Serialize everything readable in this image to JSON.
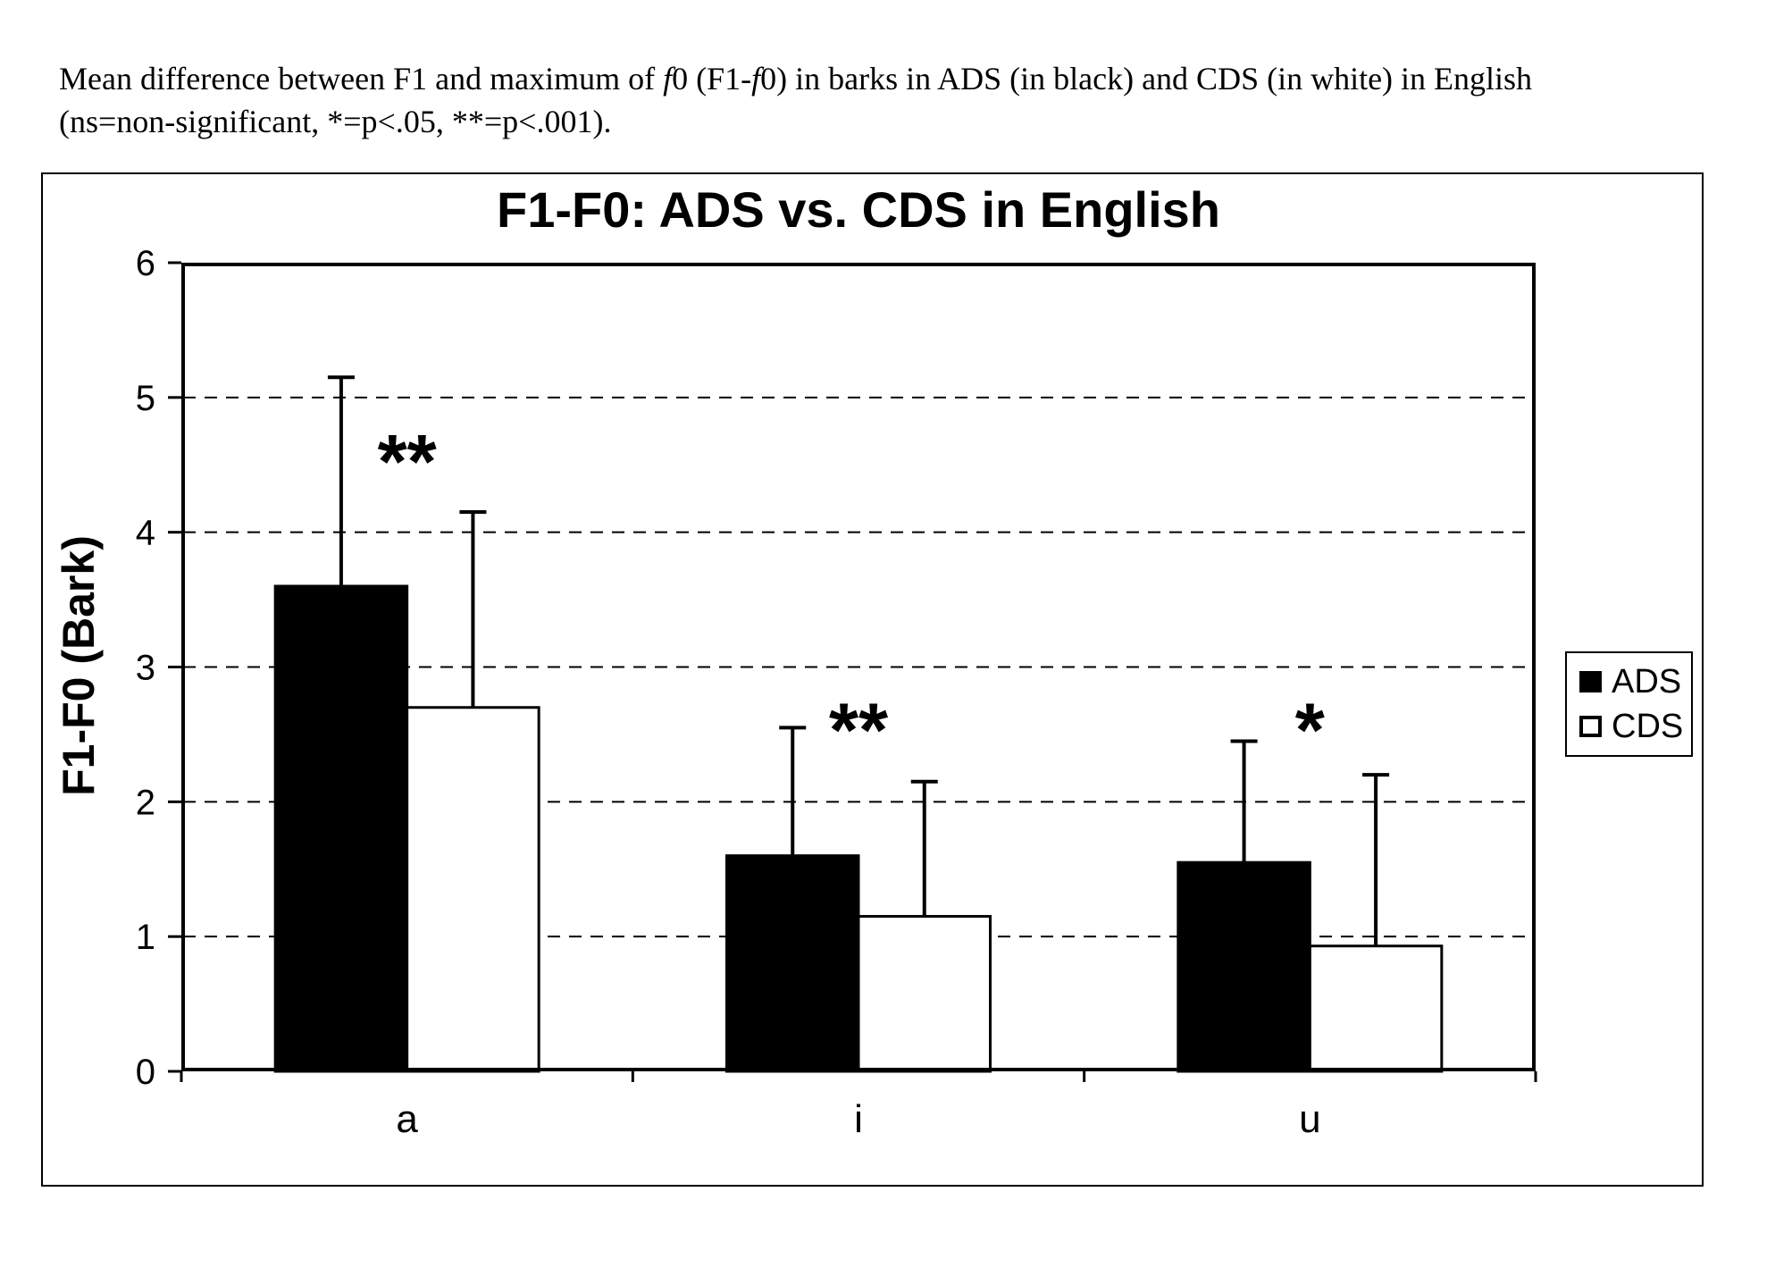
{
  "caption": {
    "line1": [
      {
        "text": "Mean difference between F1 and maximum of ",
        "italic": false
      },
      {
        "text": "f",
        "italic": true
      },
      {
        "text": "0 (F1-",
        "italic": false
      },
      {
        "text": "f",
        "italic": true
      },
      {
        "text": "0) in barks in ADS (in black) and CDS (in white) in English",
        "italic": false
      }
    ],
    "line2": "(ns=non-significant, *=p<.05, **=p<.001)."
  },
  "chart_data": {
    "type": "bar",
    "title": "F1-F0: ADS vs. CDS in English",
    "xlabel": "",
    "ylabel": "F1-F0 (Bark)",
    "categories": [
      "a",
      "i",
      "u"
    ],
    "series": [
      {
        "name": "ADS",
        "fill": "#000000",
        "values": [
          3.6,
          1.6,
          1.55
        ],
        "error_plus": [
          1.55,
          0.95,
          0.9
        ]
      },
      {
        "name": "CDS",
        "fill": "#ffffff",
        "values": [
          2.7,
          1.15,
          0.93
        ],
        "error_plus": [
          1.45,
          1.0,
          1.27
        ]
      }
    ],
    "significance": [
      {
        "category": "a",
        "marker": "**",
        "y_center": 4.62
      },
      {
        "category": "i",
        "marker": "**",
        "y_center": 2.63
      },
      {
        "category": "u",
        "marker": "*",
        "y_center": 2.63
      }
    ],
    "ylim": [
      0,
      6
    ],
    "yticks": [
      0,
      1,
      2,
      3,
      4,
      5,
      6
    ],
    "grid": "horizontal-dashed-at-1-to-5",
    "legend_position": "right-inside-frame",
    "colors": {
      "foreground": "#000000",
      "background": "#ffffff"
    }
  }
}
